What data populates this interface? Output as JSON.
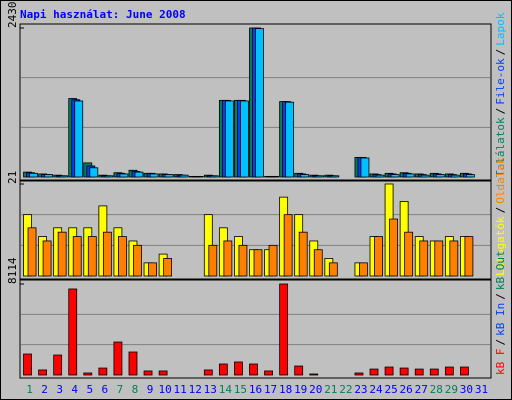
{
  "chart_data": {
    "type": "bar",
    "title": "Napi használat: June 2008",
    "categories": [
      "1",
      "2",
      "3",
      "4",
      "5",
      "6",
      "7",
      "8",
      "9",
      "10",
      "11",
      "12",
      "13",
      "14",
      "15",
      "16",
      "17",
      "18",
      "19",
      "20",
      "21",
      "22",
      "23",
      "24",
      "25",
      "26",
      "27",
      "28",
      "29",
      "30",
      "31"
    ],
    "category_colors": [
      "#00805c",
      "#0000ff",
      "#0000ff",
      "#0000ff",
      "#0000ff",
      "#0000ff",
      "#00805c",
      "#00805c",
      "#0000ff",
      "#0000ff",
      "#0000ff",
      "#0000ff",
      "#0000ff",
      "#00805c",
      "#00805c",
      "#0000ff",
      "#0000ff",
      "#0000ff",
      "#0000ff",
      "#0000ff",
      "#00805c",
      "#00805c",
      "#0000ff",
      "#0000ff",
      "#0000ff",
      "#0000ff",
      "#0000ff",
      "#00805c",
      "#00805c",
      "#0000ff",
      "#0000ff"
    ],
    "separator": "/",
    "panels": [
      {
        "ylim": [
          0,
          2430
        ],
        "yticks": [
          2430
        ],
        "series": [
          {
            "name": "Találatok",
            "color": "#00805c",
            "values": [
              80,
              50,
              30,
              1280,
              230,
              30,
              70,
              110,
              60,
              50,
              40,
              10,
              30,
              1250,
              1250,
              2430,
              10,
              1230,
              60,
              30,
              30,
              0,
              320,
              50,
              60,
              70,
              50,
              60,
              50,
              60,
              0
            ]
          },
          {
            "name": "File-ok",
            "color": "#0040ff",
            "values": [
              70,
              40,
              20,
              1260,
              180,
              20,
              60,
              90,
              60,
              40,
              30,
              10,
              20,
              1250,
              1250,
              2430,
              10,
              1230,
              50,
              20,
              20,
              0,
              320,
              40,
              50,
              60,
              40,
              50,
              40,
              50,
              0
            ]
          },
          {
            "name": "Lapok",
            "color": "#00c0ff",
            "values": [
              60,
              40,
              20,
              1240,
              150,
              20,
              50,
              80,
              50,
              40,
              30,
              10,
              20,
              1240,
              1240,
              2420,
              10,
              1220,
              40,
              20,
              20,
              0,
              310,
              30,
              40,
              50,
              30,
              40,
              30,
              40,
              0
            ]
          }
        ]
      },
      {
        "ylim": [
          0,
          21
        ],
        "yticks": [
          21
        ],
        "series": [
          {
            "name": "Látogatók",
            "color": "#ffff00",
            "values": [
              14,
              9,
              11,
              11,
              11,
              16,
              11,
              8,
              3,
              5,
              0,
              0,
              14,
              11,
              9,
              6,
              6,
              18,
              14,
              8,
              4,
              0,
              3,
              9,
              21,
              17,
              9,
              8,
              9,
              9,
              0
            ]
          },
          {
            "name": "Oldalak",
            "color": "#ff8000",
            "values": [
              11,
              8,
              10,
              9,
              9,
              10,
              9,
              7,
              3,
              4,
              0,
              0,
              7,
              8,
              7,
              6,
              7,
              14,
              10,
              6,
              3,
              0,
              3,
              9,
              13,
              10,
              8,
              8,
              8,
              9,
              0
            ]
          }
        ]
      },
      {
        "ylim": [
          0,
          8114
        ],
        "yticks": [
          8114
        ],
        "series": [
          {
            "name": "kB F",
            "color": "#ff0000",
            "values": [
              1870,
              450,
              1780,
              7670,
              180,
              620,
              2940,
              2050,
              360,
              360,
              0,
              0,
              450,
              980,
              1160,
              980,
              360,
              8114,
              800,
              90,
              0,
              0,
              180,
              530,
              710,
              620,
              530,
              530,
              710,
              710,
              0
            ]
          }
        ],
        "legend_extra": [
          {
            "name": "kB In",
            "color": "#0040ff"
          },
          {
            "name": "kB Out",
            "color": "#00805c"
          }
        ]
      }
    ]
  }
}
